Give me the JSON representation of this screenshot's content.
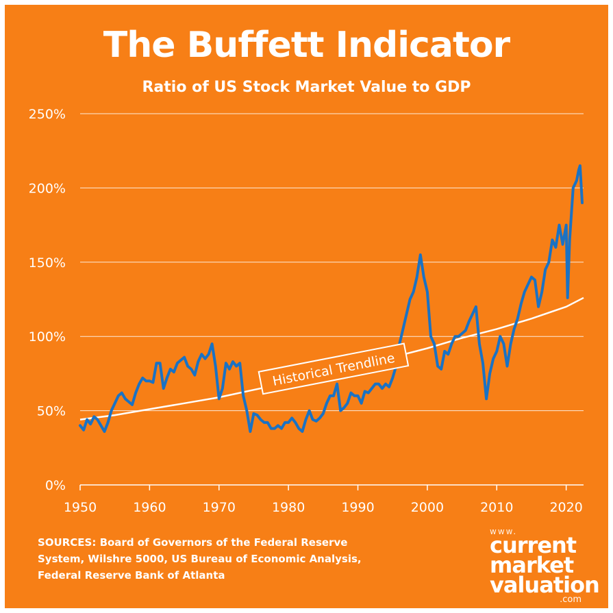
{
  "title": "The Buffett Indicator",
  "subtitle": "Ratio of US Stock Market Value to GDP",
  "sources": "SOURCES: Board of Governors of the Federal Reserve System, Wilshre 5000, US Bureau of Economic Analysis, Federal Reserve Bank of Atlanta",
  "logo": {
    "www": "www.",
    "line1": "current",
    "line2": "market",
    "line3": "valuation",
    "com": ".com"
  },
  "colors": {
    "background": "#f77f16",
    "series": "#1a72c4",
    "trend": "#ffffff",
    "grid": "#ffffff",
    "text": "#ffffff"
  },
  "chart_data": {
    "type": "line",
    "title": "The Buffett Indicator",
    "subtitle": "Ratio of US Stock Market Value to GDP",
    "xlabel": "",
    "ylabel": "",
    "xlim": [
      1950,
      2022.5
    ],
    "ylim": [
      0,
      250
    ],
    "x_ticks": [
      1950,
      1960,
      1970,
      1980,
      1990,
      2000,
      2010,
      2020
    ],
    "x_tick_labels": [
      "1950",
      "1960",
      "1970",
      "1980",
      "1990",
      "2000",
      "2010",
      "2020"
    ],
    "y_ticks": [
      0,
      50,
      100,
      150,
      200,
      250
    ],
    "y_tick_labels": [
      "0%",
      "50%",
      "100%",
      "150%",
      "200%",
      "250%"
    ],
    "grid": true,
    "series": [
      {
        "name": "Buffett Indicator",
        "x": [
          1950,
          1950.5,
          1951,
          1951.5,
          1952,
          1952.5,
          1953,
          1953.5,
          1954,
          1954.5,
          1955,
          1955.5,
          1956,
          1956.5,
          1957,
          1957.5,
          1958,
          1958.5,
          1959,
          1959.5,
          1960,
          1960.5,
          1961,
          1961.5,
          1962,
          1962.5,
          1963,
          1963.5,
          1964,
          1964.5,
          1965,
          1965.5,
          1966,
          1966.5,
          1967,
          1967.5,
          1968,
          1968.5,
          1969,
          1969.5,
          1970,
          1970.5,
          1971,
          1971.5,
          1972,
          1972.5,
          1973,
          1973.5,
          1974,
          1974.5,
          1975,
          1975.5,
          1976,
          1976.5,
          1977,
          1977.5,
          1978,
          1978.5,
          1979,
          1979.5,
          1980,
          1980.5,
          1981,
          1981.5,
          1982,
          1982.5,
          1983,
          1983.5,
          1984,
          1984.5,
          1985,
          1985.5,
          1986,
          1986.5,
          1987,
          1987.5,
          1988,
          1988.5,
          1989,
          1989.5,
          1990,
          1990.5,
          1991,
          1991.5,
          1992,
          1992.5,
          1993,
          1993.5,
          1994,
          1994.5,
          1995,
          1995.5,
          1996,
          1996.5,
          1997,
          1997.5,
          1998,
          1998.5,
          1999,
          1999.5,
          2000,
          2000.5,
          2001,
          2001.5,
          2002,
          2002.5,
          2003,
          2003.5,
          2004,
          2004.5,
          2005,
          2005.5,
          2006,
          2006.5,
          2007,
          2007.5,
          2008,
          2008.5,
          2009,
          2009.5,
          2010,
          2010.5,
          2011,
          2011.5,
          2012,
          2012.5,
          2013,
          2013.5,
          2014,
          2014.5,
          2015,
          2015.5,
          2016,
          2016.5,
          2017,
          2017.5,
          2018,
          2018.5,
          2019,
          2019.5,
          2020,
          2020.2,
          2020.5,
          2021,
          2021.5,
          2021.8,
          2022,
          2022.3
        ],
        "values": [
          40,
          37,
          44,
          41,
          46,
          44,
          40,
          36,
          42,
          50,
          55,
          60,
          62,
          58,
          56,
          54,
          62,
          68,
          72,
          70,
          70,
          69,
          82,
          82,
          65,
          72,
          78,
          76,
          82,
          84,
          86,
          80,
          78,
          74,
          83,
          88,
          85,
          88,
          95,
          80,
          58,
          65,
          82,
          78,
          83,
          80,
          82,
          60,
          50,
          36,
          48,
          47,
          44,
          42,
          42,
          38,
          38,
          40,
          38,
          42,
          42,
          45,
          42,
          38,
          36,
          44,
          50,
          44,
          43,
          45,
          48,
          55,
          60,
          60,
          68,
          50,
          52,
          55,
          62,
          60,
          60,
          55,
          63,
          62,
          65,
          68,
          68,
          65,
          68,
          66,
          72,
          80,
          95,
          105,
          115,
          125,
          130,
          140,
          155,
          140,
          130,
          100,
          95,
          80,
          78,
          90,
          88,
          95,
          100,
          100,
          102,
          104,
          110,
          115,
          120,
          95,
          82,
          58,
          75,
          85,
          90,
          100,
          95,
          80,
          95,
          105,
          112,
          122,
          130,
          135,
          140,
          138,
          120,
          130,
          145,
          150,
          165,
          160,
          175,
          162,
          175,
          126,
          165,
          200,
          205,
          212,
          215,
          190
        ]
      },
      {
        "name": "Historical Trendline",
        "x": [
          1950,
          1955,
          1960,
          1965,
          1970,
          1975,
          1980,
          1985,
          1990,
          1995,
          2000,
          2005,
          2010,
          2015,
          2020,
          2022.5
        ],
        "values": [
          44,
          47,
          51,
          55,
          59,
          64,
          69,
          74,
          80,
          86,
          92,
          99,
          105,
          112,
          120,
          126
        ]
      }
    ],
    "annotations": [
      {
        "text": "Historical Trendline",
        "x": 1986.5,
        "y": 78
      }
    ]
  }
}
